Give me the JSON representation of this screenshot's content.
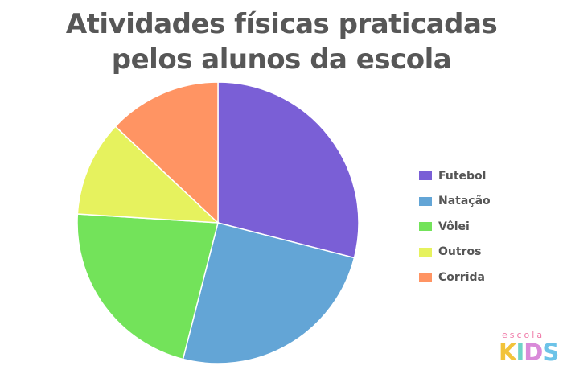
{
  "title_line1": "Atividades físicas praticadas",
  "title_line2": "pelos alunos da escola",
  "chart_data": {
    "type": "pie",
    "title": "Atividades físicas praticadas pelos alunos da escola",
    "categories": [
      "Futebol",
      "Natação",
      "Vôlei",
      "Outros",
      "Corrida"
    ],
    "values": [
      29,
      25,
      22,
      11,
      13
    ],
    "unit": "%",
    "colors": [
      "#7a5fd6",
      "#63a5d6",
      "#73e35a",
      "#e6f25e",
      "#ff9463"
    ],
    "start_angle_deg": 0,
    "direction": "clockwise",
    "legend": "right"
  },
  "legend": [
    {
      "label": "Futebol",
      "color": "#7a5fd6"
    },
    {
      "label": "Natação",
      "color": "#63a5d6"
    },
    {
      "label": "Vôlei",
      "color": "#73e35a"
    },
    {
      "label": "Outros",
      "color": "#e6f25e"
    },
    {
      "label": "Corrida",
      "color": "#ff9463"
    }
  ],
  "logo": {
    "small_text": "escola",
    "letters": [
      {
        "char": "K",
        "color": "#f2c33a"
      },
      {
        "char": "I",
        "color": "#6fd3c7"
      },
      {
        "char": "D",
        "color": "#d98ad9"
      },
      {
        "char": "S",
        "color": "#6cc3e8"
      }
    ]
  }
}
